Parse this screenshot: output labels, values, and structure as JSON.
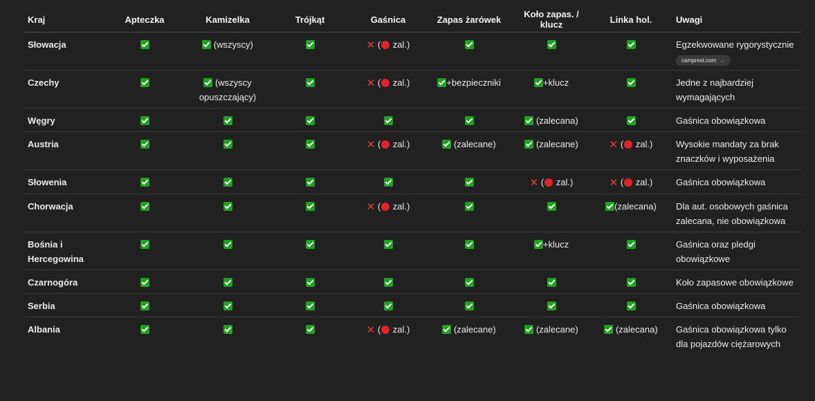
{
  "headers": [
    "Kraj",
    "Apteczka",
    "Kamizelka",
    "Trójkąt",
    "Gaśnica",
    "Zapas żarówek",
    "Koło zapas. / klucz",
    "Linka hol.",
    "Uwagi"
  ],
  "rows": [
    {
      "country": "Słowacja",
      "cells": [
        [
          "y",
          ""
        ],
        [
          "y",
          " (wszyscy)"
        ],
        [
          "y",
          ""
        ],
        [
          "x",
          "zal."
        ],
        [
          "y",
          ""
        ],
        [
          "y",
          ""
        ],
        [
          "y",
          ""
        ]
      ],
      "note": "Egzekwowane rygorystycznie",
      "source": "camprest.com"
    },
    {
      "country": "Czechy",
      "cells": [
        [
          "y",
          ""
        ],
        [
          "y",
          " (wszyscy opuszczający)"
        ],
        [
          "y",
          ""
        ],
        [
          "x",
          "zal."
        ],
        [
          "y",
          "+bezpieczniki"
        ],
        [
          "y",
          "+klucz"
        ],
        [
          "y",
          ""
        ]
      ],
      "note": "Jedne z najbardziej wymagających"
    },
    {
      "country": "Węgry",
      "cells": [
        [
          "y",
          ""
        ],
        [
          "y",
          ""
        ],
        [
          "y",
          ""
        ],
        [
          "y",
          ""
        ],
        [
          "y",
          ""
        ],
        [
          "y",
          " (zalecana)"
        ],
        [
          "y",
          ""
        ]
      ],
      "note": "Gaśnica obowiązkowa"
    },
    {
      "country": "Austria",
      "cells": [
        [
          "y",
          ""
        ],
        [
          "y",
          ""
        ],
        [
          "y",
          ""
        ],
        [
          "x",
          "zal."
        ],
        [
          "y",
          " (zalecane)"
        ],
        [
          "y",
          " (zalecane)"
        ],
        [
          "x",
          "zal."
        ]
      ],
      "note": "Wysokie mandaty za brak znaczków i wyposażenia"
    },
    {
      "country": "Słowenia",
      "cells": [
        [
          "y",
          ""
        ],
        [
          "y",
          ""
        ],
        [
          "y",
          ""
        ],
        [
          "y",
          ""
        ],
        [
          "y",
          ""
        ],
        [
          "x",
          "zal."
        ],
        [
          "x",
          "zal."
        ]
      ],
      "note": "Gaśnica obowiązkowa"
    },
    {
      "country": "Chorwacja",
      "cells": [
        [
          "y",
          ""
        ],
        [
          "y",
          ""
        ],
        [
          "y",
          ""
        ],
        [
          "x",
          "zal."
        ],
        [
          "y",
          ""
        ],
        [
          "y",
          ""
        ],
        [
          "y",
          "(zalecana)"
        ]
      ],
      "note": "Dla aut. osobowych gaśnica zalecana, nie obowiązkowa"
    },
    {
      "country": "Bośnia i Hercegowina",
      "cells": [
        [
          "y",
          ""
        ],
        [
          "y",
          ""
        ],
        [
          "y",
          ""
        ],
        [
          "y",
          ""
        ],
        [
          "y",
          ""
        ],
        [
          "y",
          "+klucz"
        ],
        [
          "y",
          ""
        ]
      ],
      "note": "Gaśnica oraz pledgi obowiązkowe"
    },
    {
      "country": "Czarnogóra",
      "cells": [
        [
          "y",
          ""
        ],
        [
          "y",
          ""
        ],
        [
          "y",
          ""
        ],
        [
          "y",
          ""
        ],
        [
          "y",
          ""
        ],
        [
          "y",
          ""
        ],
        [
          "y",
          ""
        ]
      ],
      "note": "Koło zapasowe obowiązkowe"
    },
    {
      "country": "Serbia",
      "cells": [
        [
          "y",
          ""
        ],
        [
          "y",
          ""
        ],
        [
          "y",
          ""
        ],
        [
          "y",
          ""
        ],
        [
          "y",
          ""
        ],
        [
          "y",
          ""
        ],
        [
          "y",
          ""
        ]
      ],
      "note": "Gaśnica obowiązkowa"
    },
    {
      "country": "Albania",
      "cells": [
        [
          "y",
          ""
        ],
        [
          "y",
          ""
        ],
        [
          "y",
          ""
        ],
        [
          "x",
          "zal."
        ],
        [
          "y",
          " (zalecane)"
        ],
        [
          "y",
          " (zalecane)"
        ],
        [
          "y",
          " (zalecana)"
        ]
      ],
      "note": "Gaśnica obowiązkowa tylko dla pojazdów ciężarowych"
    }
  ]
}
